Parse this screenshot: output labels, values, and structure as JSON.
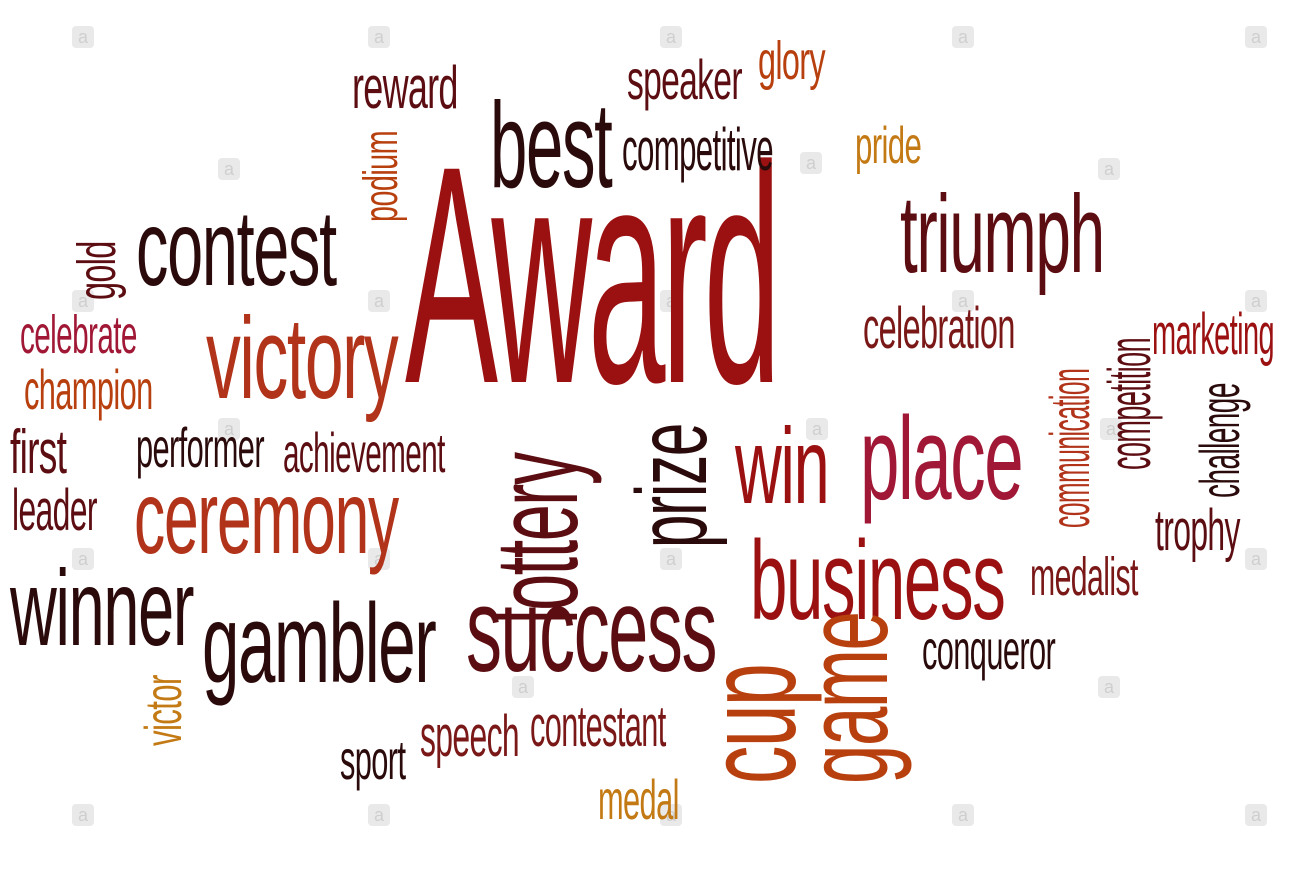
{
  "colors": {
    "dark_red": "#9b1111",
    "maroon": "#5c0d12",
    "near_black": "#2a0a0a",
    "brown_red": "#7a1818",
    "burnt_orange": "#b8400f",
    "amber": "#c47a14",
    "crimson": "#a01836",
    "rust": "#b1331a"
  },
  "words": {
    "award": "Award",
    "best": "best",
    "reward": "reward",
    "speaker": "speaker",
    "glory": "glory",
    "competitive": "competitive",
    "pride": "pride",
    "podium": "podium",
    "contest": "contest",
    "gold": "gold",
    "celebrate": "celebrate",
    "victory": "victory",
    "champion": "champion",
    "triumph": "triumph",
    "celebration": "celebration",
    "communication": "communication",
    "competition": "competition",
    "marketing": "marketing",
    "challenge": "challenge",
    "first": "first",
    "performer": "performer",
    "achievement": "achievement",
    "leader": "leader",
    "ceremony": "ceremony",
    "lottery": "lottery",
    "prize": "prize",
    "win": "win",
    "place": "place",
    "trophy": "trophy",
    "winner": "winner",
    "gambler": "gambler",
    "success": "success",
    "business": "business",
    "medalist": "medalist",
    "conqueror": "conqueror",
    "victor": "victor",
    "game": "game",
    "cup": "cup",
    "speech": "speech",
    "contestant": "contestant",
    "sport": "sport",
    "medal": "medal"
  },
  "watermark": {
    "glyph": "a"
  }
}
